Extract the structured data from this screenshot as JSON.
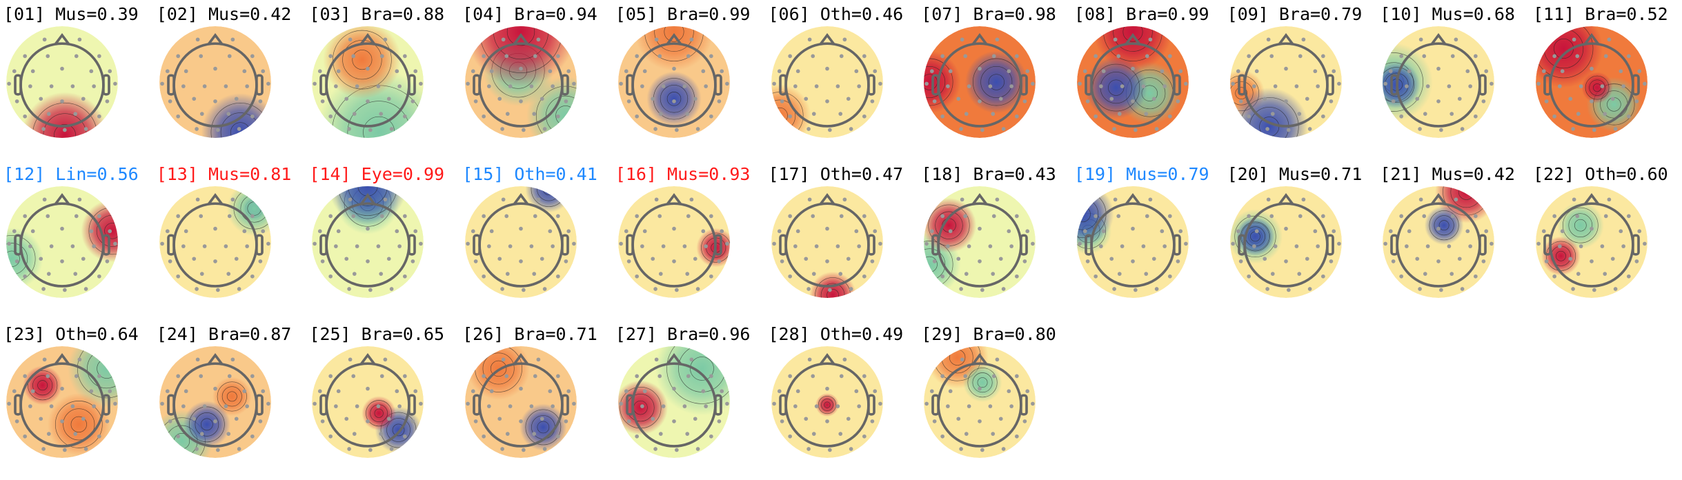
{
  "label_colors": {
    "default": "#000000",
    "blue": "#1e88ff",
    "red": "#ff1a1a"
  },
  "components": [
    {
      "label": "[01] Mus=0.39",
      "color": "default"
    },
    {
      "label": "[02] Mus=0.42",
      "color": "default"
    },
    {
      "label": "[03] Bra=0.88",
      "color": "default"
    },
    {
      "label": "[04] Bra=0.94",
      "color": "default"
    },
    {
      "label": "[05] Bra=0.99",
      "color": "default"
    },
    {
      "label": "[06] Oth=0.46",
      "color": "default"
    },
    {
      "label": "[07] Bra=0.98",
      "color": "default"
    },
    {
      "label": "[08] Bra=0.99",
      "color": "default"
    },
    {
      "label": "[09] Bra=0.79",
      "color": "default"
    },
    {
      "label": "[10] Mus=0.68",
      "color": "default"
    },
    {
      "label": "[11] Bra=0.52",
      "color": "default"
    },
    {
      "label": "[12] Lin=0.56",
      "color": "blue"
    },
    {
      "label": "[13] Mus=0.81",
      "color": "red"
    },
    {
      "label": "[14] Eye=0.99",
      "color": "red"
    },
    {
      "label": "[15] Oth=0.41",
      "color": "blue"
    },
    {
      "label": "[16] Mus=0.93",
      "color": "red"
    },
    {
      "label": "[17] Oth=0.47",
      "color": "default"
    },
    {
      "label": "[18] Bra=0.43",
      "color": "default"
    },
    {
      "label": "[19] Mus=0.79",
      "color": "blue"
    },
    {
      "label": "[20] Mus=0.71",
      "color": "default"
    },
    {
      "label": "[21] Mus=0.42",
      "color": "default"
    },
    {
      "label": "[22] Oth=0.60",
      "color": "default"
    },
    {
      "label": "[23] Oth=0.64",
      "color": "default"
    },
    {
      "label": "[24] Bra=0.87",
      "color": "default"
    },
    {
      "label": "[25] Bra=0.65",
      "color": "default"
    },
    {
      "label": "[26] Bra=0.71",
      "color": "default"
    },
    {
      "label": "[27] Bra=0.96",
      "color": "default"
    },
    {
      "label": "[28] Oth=0.49",
      "color": "default"
    },
    {
      "label": "[29] Bra=0.80",
      "color": "default"
    }
  ]
}
